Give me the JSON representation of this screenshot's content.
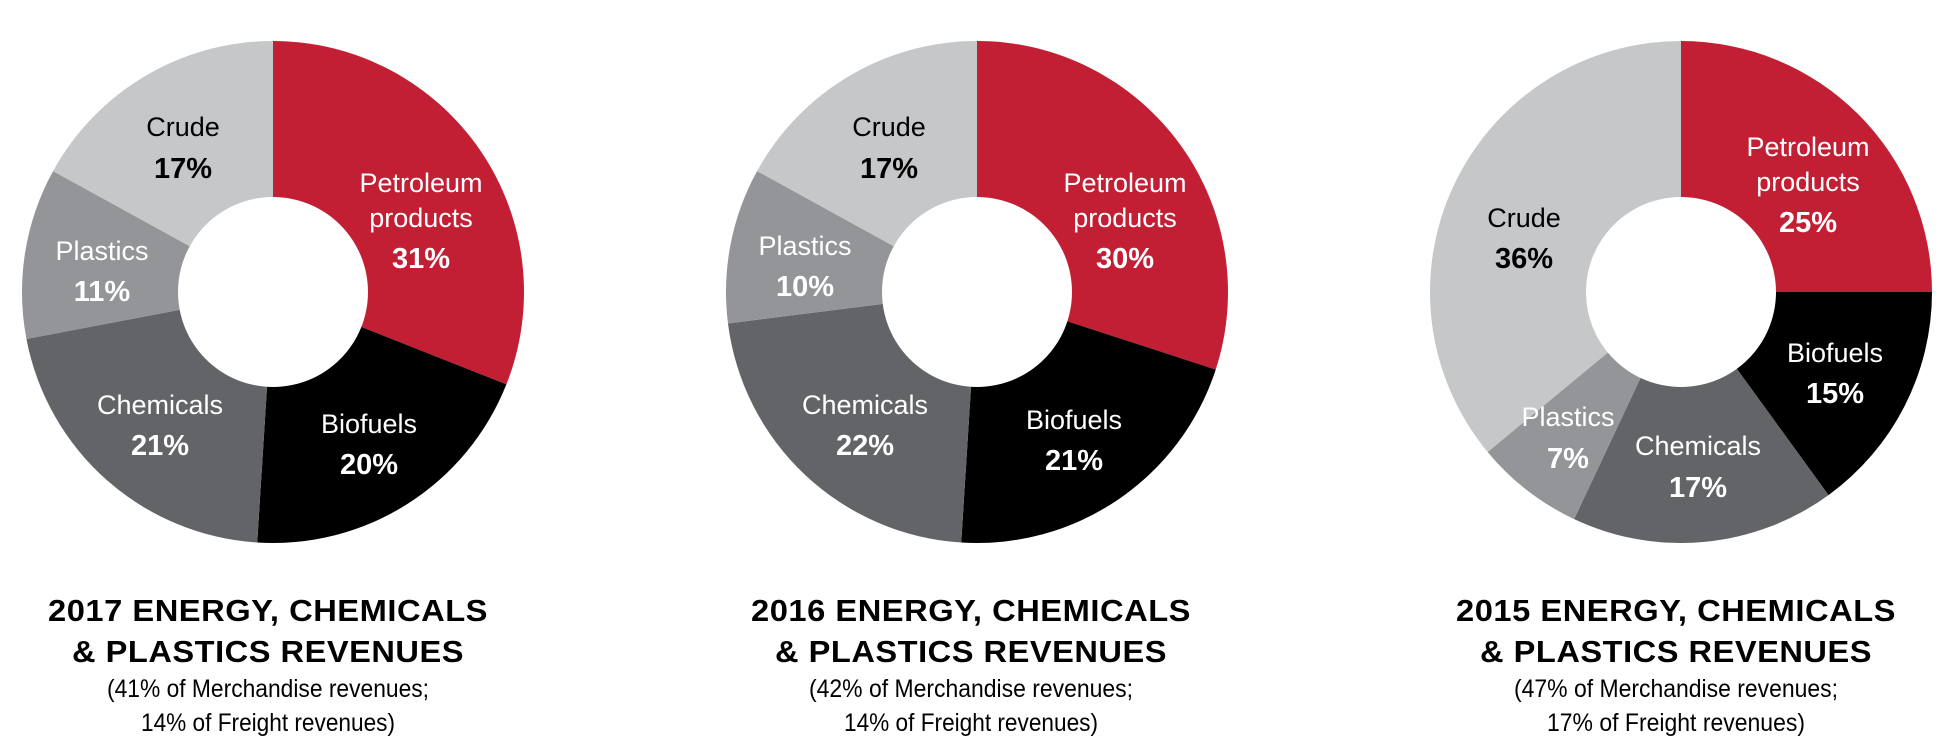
{
  "colors": {
    "petroleum": "#c21f34",
    "biofuels": "#000000",
    "chemicals": "#636467",
    "plastics": "#939598",
    "crude": "#c6c7c9",
    "hole": "#ffffff",
    "caption": "#000000"
  },
  "charts": [
    {
      "year": "2017",
      "title_line1": "2017 ENERGY, CHEMICALS",
      "title_line2": "& PLASTICS REVENUES",
      "subtitle_line1": "(41% of Merchandise revenues;",
      "subtitle_line2": "14% of Freight revenues)",
      "slices": [
        {
          "name": "Petroleum products",
          "line1": "Petroleum",
          "line2": "products",
          "pct": "31%"
        },
        {
          "name": "Biofuels",
          "line1": "Biofuels",
          "pct": "20%"
        },
        {
          "name": "Chemicals",
          "line1": "Chemicals",
          "pct": "21%"
        },
        {
          "name": "Plastics",
          "line1": "Plastics",
          "pct": "11%"
        },
        {
          "name": "Crude",
          "line1": "Crude",
          "pct": "17%"
        }
      ]
    },
    {
      "year": "2016",
      "title_line1": "2016 ENERGY, CHEMICALS",
      "title_line2": "& PLASTICS REVENUES",
      "subtitle_line1": "(42% of Merchandise revenues;",
      "subtitle_line2": "14% of Freight revenues)",
      "slices": [
        {
          "name": "Petroleum products",
          "line1": "Petroleum",
          "line2": "products",
          "pct": "30%"
        },
        {
          "name": "Biofuels",
          "line1": "Biofuels",
          "pct": "21%"
        },
        {
          "name": "Chemicals",
          "line1": "Chemicals",
          "pct": "22%"
        },
        {
          "name": "Plastics",
          "line1": "Plastics",
          "pct": "10%"
        },
        {
          "name": "Crude",
          "line1": "Crude",
          "pct": "17%"
        }
      ]
    },
    {
      "year": "2015",
      "title_line1": "2015 ENERGY, CHEMICALS",
      "title_line2": "& PLASTICS REVENUES",
      "subtitle_line1": "(47% of Merchandise revenues;",
      "subtitle_line2": "17% of Freight revenues)",
      "slices": [
        {
          "name": "Petroleum products",
          "line1": "Petroleum",
          "line2": "products",
          "pct": "25%"
        },
        {
          "name": "Biofuels",
          "line1": "Biofuels",
          "pct": "15%"
        },
        {
          "name": "Chemicals",
          "line1": "Chemicals",
          "pct": "17%"
        },
        {
          "name": "Plastics",
          "line1": "Plastics",
          "pct": "7%"
        },
        {
          "name": "Crude",
          "line1": "Crude",
          "pct": "36%"
        }
      ]
    }
  ],
  "chart_data": [
    {
      "type": "pie",
      "subtype": "donut",
      "title": "2017 ENERGY, CHEMICALS & PLASTICS REVENUES",
      "subtitle": "(41% of Merchandise revenues; 14% of Freight revenues)",
      "categories": [
        "Petroleum products",
        "Biofuels",
        "Chemicals",
        "Plastics",
        "Crude"
      ],
      "values": [
        31,
        20,
        21,
        11,
        17
      ],
      "unit": "%",
      "colors": [
        "#c21f34",
        "#000000",
        "#636467",
        "#939598",
        "#c6c7c9"
      ],
      "start_angle": "12 o'clock, clockwise",
      "legend": "none (inline labels)"
    },
    {
      "type": "pie",
      "subtype": "donut",
      "title": "2016 ENERGY, CHEMICALS & PLASTICS REVENUES",
      "subtitle": "(42% of Merchandise revenues; 14% of Freight revenues)",
      "categories": [
        "Petroleum products",
        "Biofuels",
        "Chemicals",
        "Plastics",
        "Crude"
      ],
      "values": [
        30,
        21,
        22,
        10,
        17
      ],
      "unit": "%",
      "colors": [
        "#c21f34",
        "#000000",
        "#636467",
        "#939598",
        "#c6c7c9"
      ],
      "start_angle": "12 o'clock, clockwise",
      "legend": "none (inline labels)"
    },
    {
      "type": "pie",
      "subtype": "donut",
      "title": "2015 ENERGY, CHEMICALS & PLASTICS REVENUES",
      "subtitle": "(47% of Merchandise revenues; 17% of Freight revenues)",
      "categories": [
        "Petroleum products",
        "Biofuels",
        "Chemicals",
        "Plastics",
        "Crude"
      ],
      "values": [
        25,
        15,
        17,
        7,
        36
      ],
      "unit": "%",
      "colors": [
        "#c21f34",
        "#000000",
        "#636467",
        "#939598",
        "#c6c7c9"
      ],
      "start_angle": "12 o'clock, clockwise",
      "legend": "none (inline labels)"
    }
  ]
}
